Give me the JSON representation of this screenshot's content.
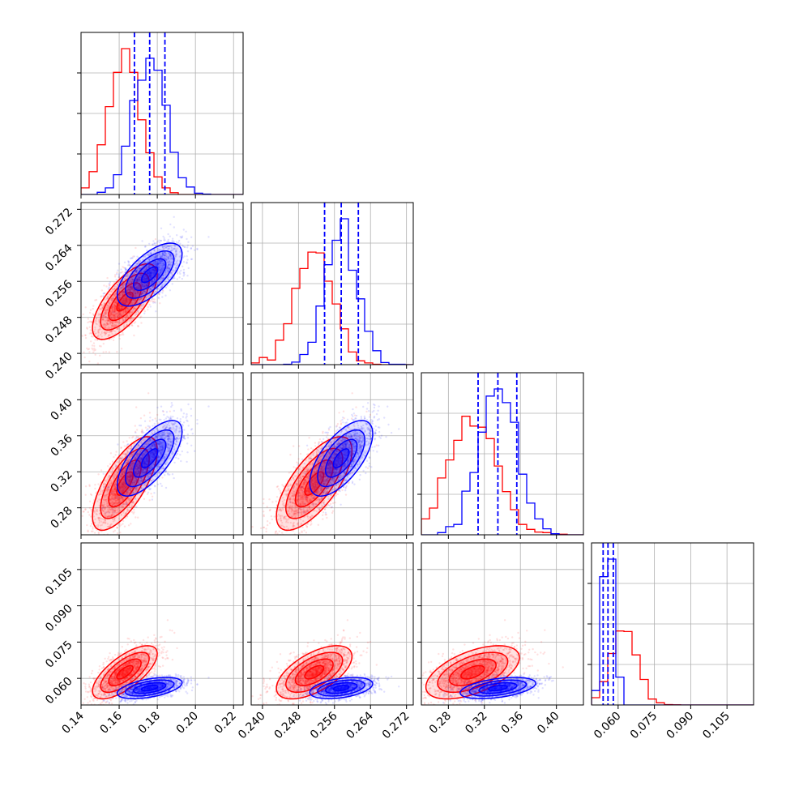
{
  "chart_data": {
    "type": "corner",
    "grid": true,
    "series_colors": {
      "red": "#ff0000",
      "blue": "#0000ff"
    },
    "params": [
      {
        "range": [
          0.14,
          0.225
        ],
        "ticks": [
          0.14,
          0.16,
          0.18,
          0.2,
          0.22
        ],
        "tick_labels": [
          "0.14",
          "0.16",
          "0.18",
          "0.20",
          "0.22"
        ]
      },
      {
        "range": [
          0.2375,
          0.2735
        ],
        "ticks": [
          0.24,
          0.248,
          0.256,
          0.264,
          0.272
        ],
        "tick_labels": [
          "0.240",
          "0.248",
          "0.256",
          "0.264",
          "0.272"
        ]
      },
      {
        "range": [
          0.25,
          0.43
        ],
        "ticks": [
          0.28,
          0.32,
          0.36,
          0.4
        ],
        "tick_labels": [
          "0.28",
          "0.32",
          "0.36",
          "0.40"
        ]
      },
      {
        "range": [
          0.049,
          0.116
        ],
        "ticks": [
          0.06,
          0.075,
          0.09,
          0.105
        ],
        "tick_labels": [
          "0.060",
          "0.075",
          "0.090",
          "0.105"
        ]
      }
    ],
    "posteriors": {
      "red": {
        "mean": [
          0.163,
          0.2515,
          0.307,
          0.0625
        ],
        "sd": [
          0.0085,
          0.0042,
          0.026,
          0.0055
        ],
        "corr": [
          [
            1,
            0.7,
            0.7,
            0.7
          ],
          [
            0.7,
            1,
            0.7,
            0.6
          ],
          [
            0.7,
            0.7,
            1,
            0.55
          ],
          [
            0.7,
            0.6,
            0.55,
            1
          ]
        ]
      },
      "blue": {
        "mean": [
          0.176,
          0.2575,
          0.335,
          0.056
        ],
        "sd": [
          0.0085,
          0.0035,
          0.021,
          0.0022
        ],
        "corr": [
          [
            1,
            0.65,
            0.7,
            0.5
          ],
          [
            0.65,
            1,
            0.65,
            0.4
          ],
          [
            0.7,
            0.65,
            1,
            0.45
          ],
          [
            0.5,
            0.4,
            0.45,
            1
          ]
        ]
      }
    },
    "quantile_lines_blue": [
      [
        0.168,
        0.176,
        0.184
      ],
      [
        0.2538,
        0.2575,
        0.2613
      ],
      [
        0.313,
        0.335,
        0.356
      ],
      [
        0.0538,
        0.0558,
        0.058
      ]
    ]
  }
}
